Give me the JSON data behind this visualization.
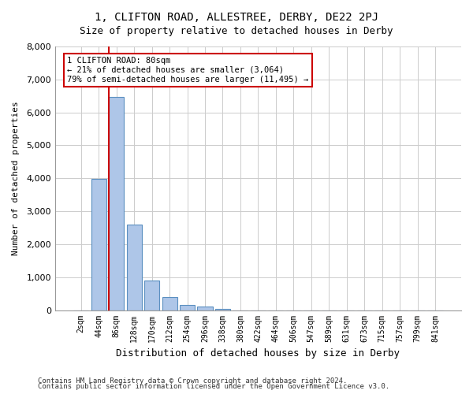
{
  "title_line1": "1, CLIFTON ROAD, ALLESTREE, DERBY, DE22 2PJ",
  "title_line2": "Size of property relative to detached houses in Derby",
  "xlabel": "Distribution of detached houses by size in Derby",
  "ylabel": "Number of detached properties",
  "bar_labels": [
    "2sqm",
    "44sqm",
    "86sqm",
    "128sqm",
    "170sqm",
    "212sqm",
    "254sqm",
    "296sqm",
    "338sqm",
    "380sqm",
    "422sqm",
    "464sqm",
    "506sqm",
    "547sqm",
    "589sqm",
    "631sqm",
    "673sqm",
    "715sqm",
    "757sqm",
    "799sqm",
    "841sqm"
  ],
  "bar_values": [
    0,
    3980,
    6480,
    2600,
    900,
    400,
    150,
    100,
    30,
    0,
    0,
    0,
    0,
    0,
    0,
    0,
    0,
    0,
    0,
    0,
    0
  ],
  "bar_color": "#aec6e8",
  "bar_edgecolor": "#5a8fc0",
  "vline_x": 2,
  "vline_color": "#cc0000",
  "annotation_text": "1 CLIFTON ROAD: 80sqm\n← 21% of detached houses are smaller (3,064)\n79% of semi-detached houses are larger (11,495) →",
  "annotation_box_color": "#cc0000",
  "ylim": [
    0,
    8000
  ],
  "yticks": [
    0,
    1000,
    2000,
    3000,
    4000,
    5000,
    6000,
    7000,
    8000
  ],
  "footer_line1": "Contains HM Land Registry data © Crown copyright and database right 2024.",
  "footer_line2": "Contains public sector information licensed under the Open Government Licence v3.0.",
  "background_color": "#ffffff",
  "grid_color": "#cccccc"
}
